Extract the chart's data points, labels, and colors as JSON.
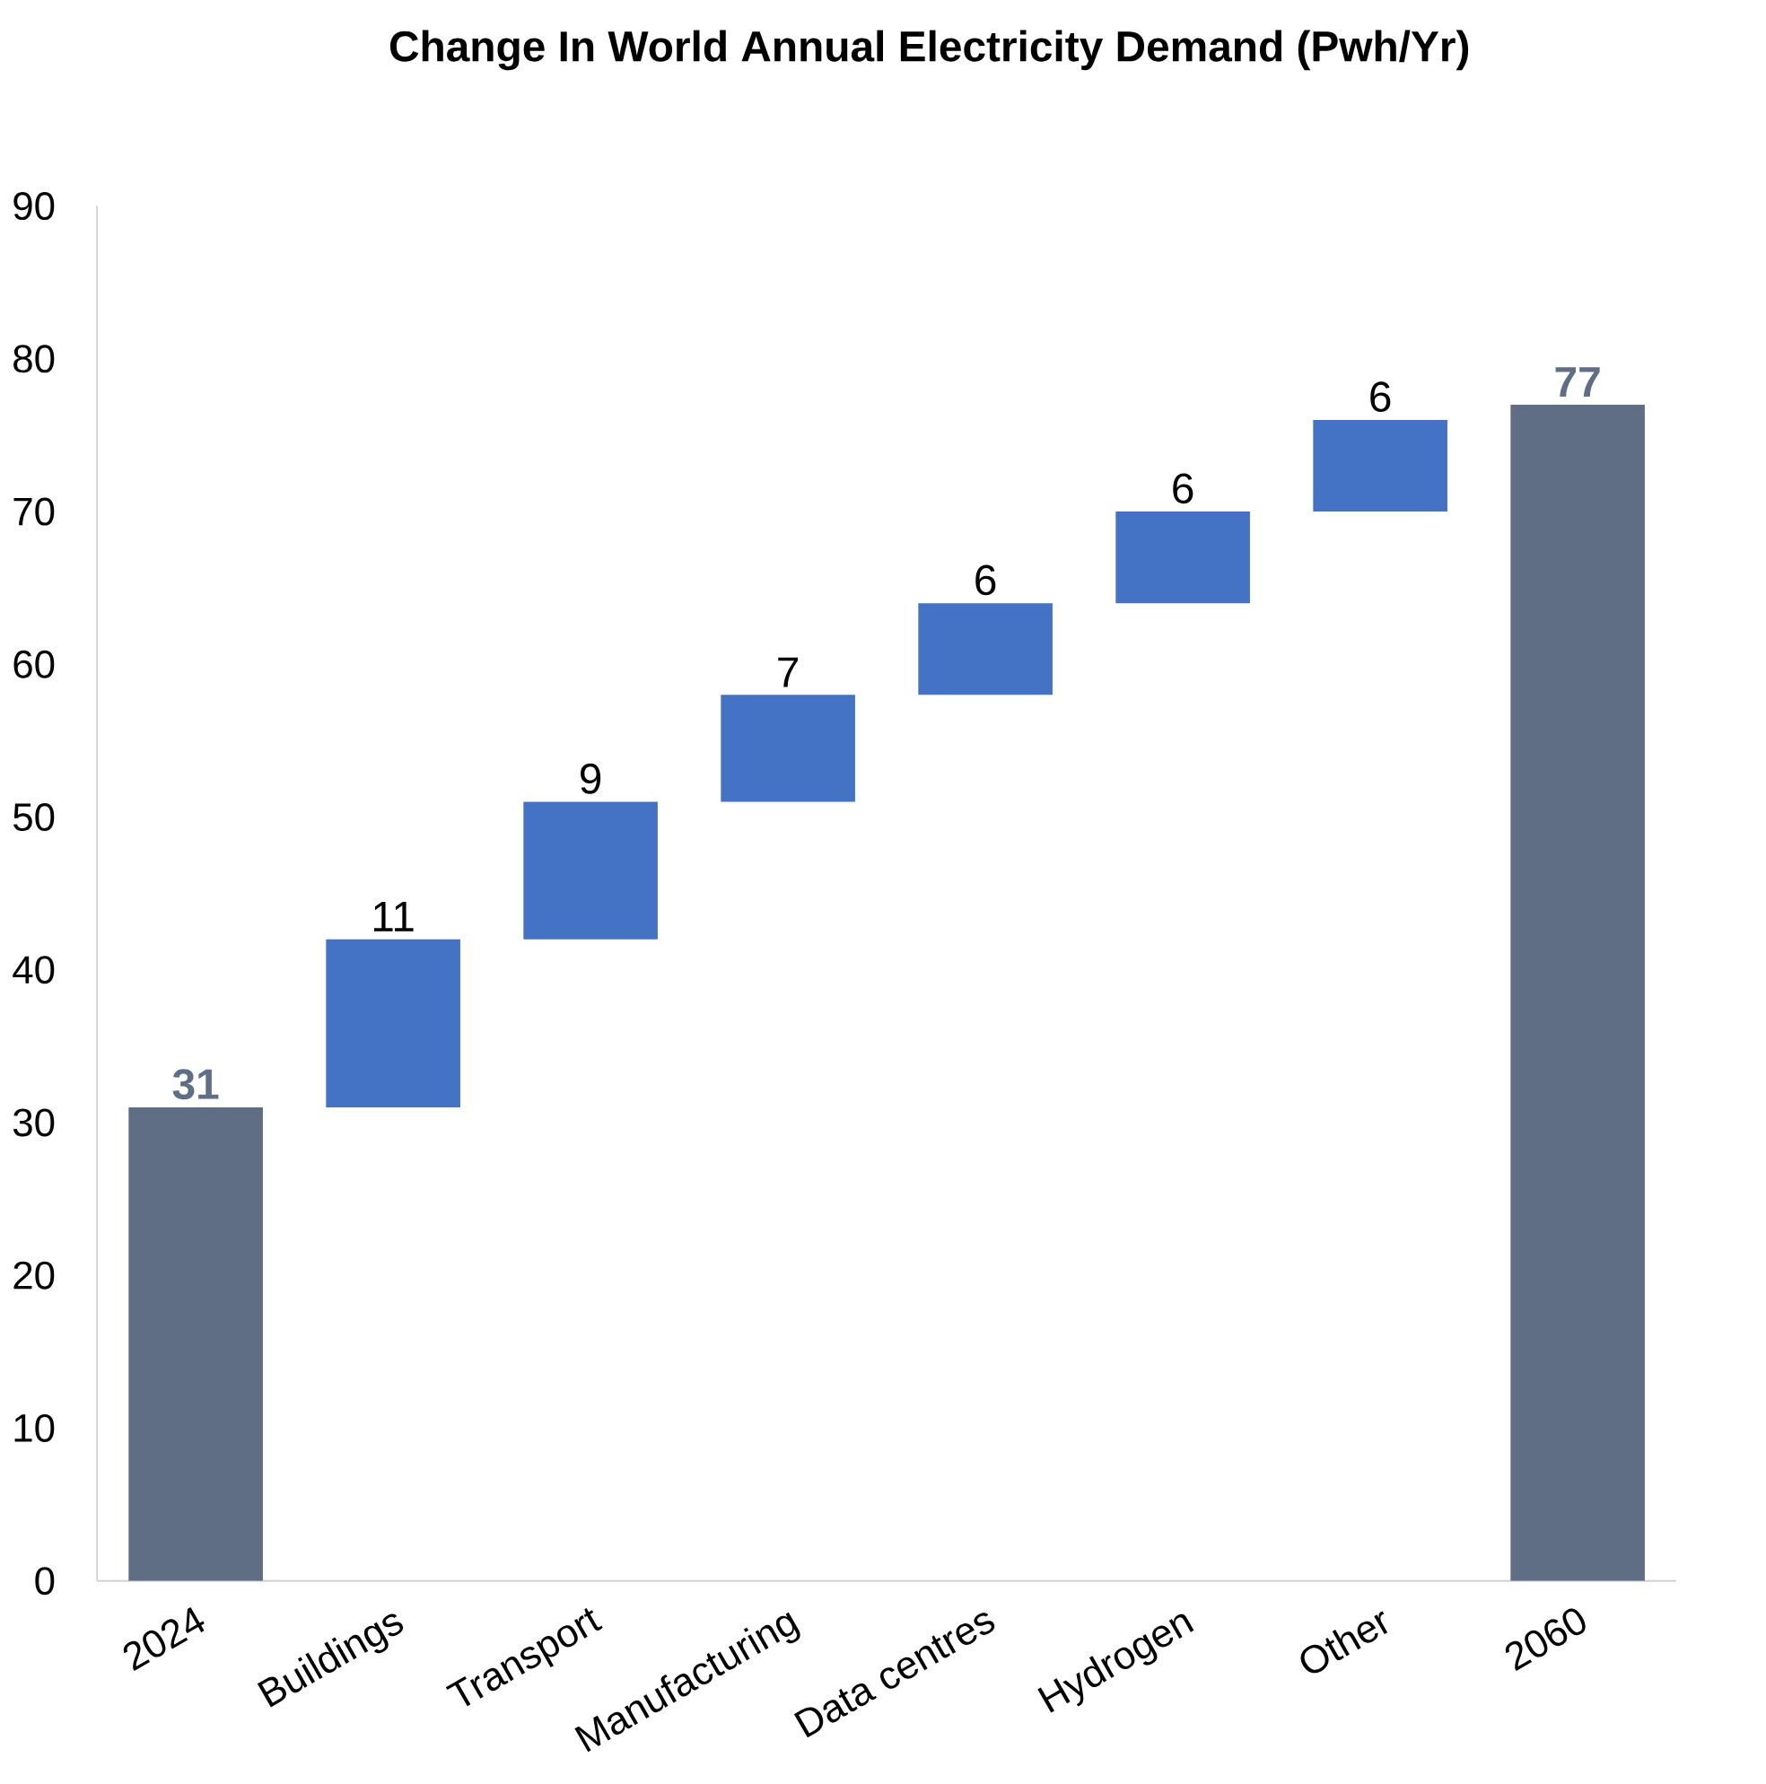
{
  "chart_data": {
    "type": "bar",
    "title": "Change In World Annual Electricity Demand (Pwh/Yr)",
    "categories": [
      "2024",
      "Buildings",
      "Transport",
      "Manufacturing",
      "Data centres",
      "Hydrogen",
      "Other",
      "2060"
    ],
    "values": [
      31,
      11,
      9,
      7,
      6,
      6,
      6,
      77
    ],
    "base": [
      0,
      31,
      42,
      51,
      58,
      64,
      70,
      0
    ],
    "colors": [
      "#5f6e84",
      "#4472c4",
      "#4472c4",
      "#4472c4",
      "#4472c4",
      "#4472c4",
      "#4472c4",
      "#5f6e84"
    ],
    "ylim": [
      0,
      90
    ],
    "yticks": [
      0,
      10,
      20,
      30,
      40,
      50,
      60,
      70,
      80,
      90
    ],
    "data_labels": true
  }
}
